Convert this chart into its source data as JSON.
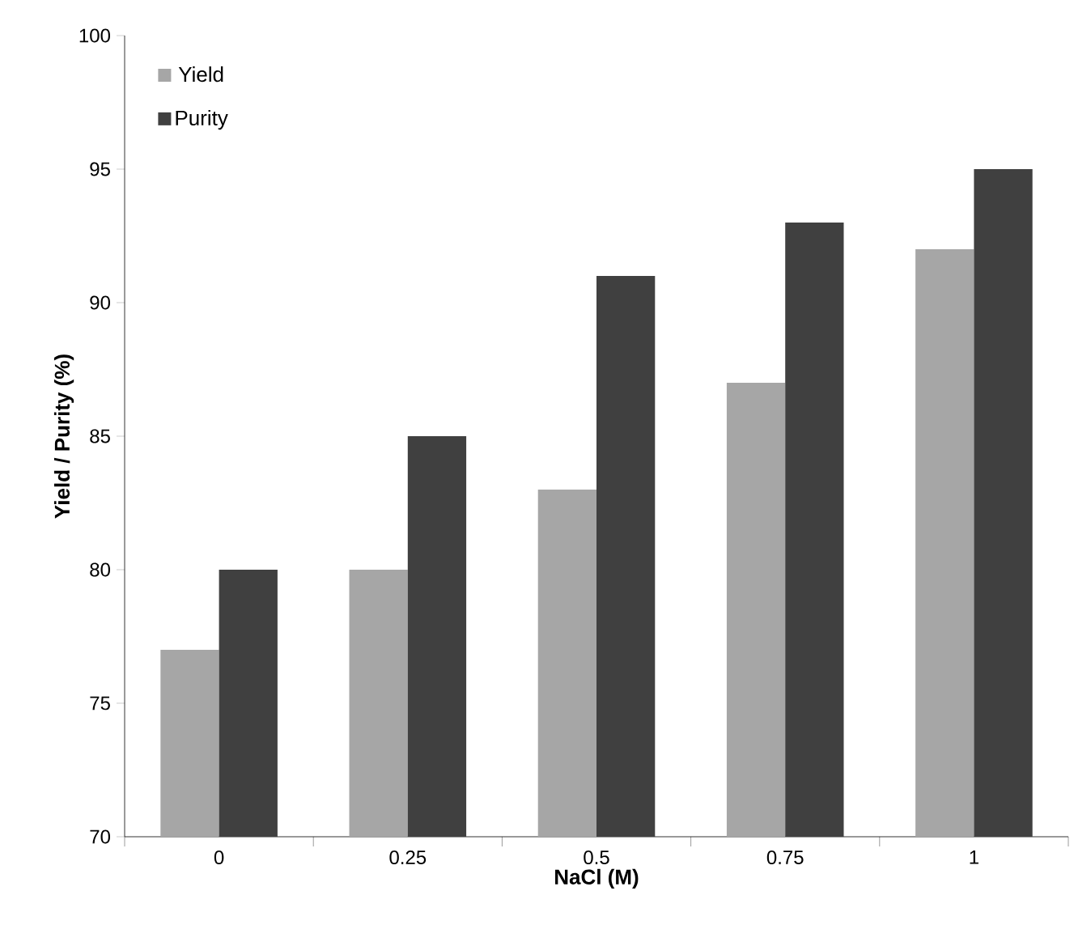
{
  "chart_data": {
    "type": "bar",
    "xlabel": "NaCl (M)",
    "ylabel": "Yield  /  Purity (%)",
    "categories": [
      "0",
      "0.25",
      "0.5",
      "0.75",
      "1"
    ],
    "series": [
      {
        "name": "Yield",
        "color": "#a6a6a6",
        "values": [
          77,
          80,
          83,
          87,
          92
        ]
      },
      {
        "name": "Purity",
        "color": "#404040",
        "values": [
          80,
          85,
          91,
          93,
          95
        ]
      }
    ],
    "ylim": [
      70,
      100
    ],
    "yticks": [
      70,
      75,
      80,
      85,
      90,
      95,
      100
    ],
    "legend": "top left",
    "grid": false
  }
}
